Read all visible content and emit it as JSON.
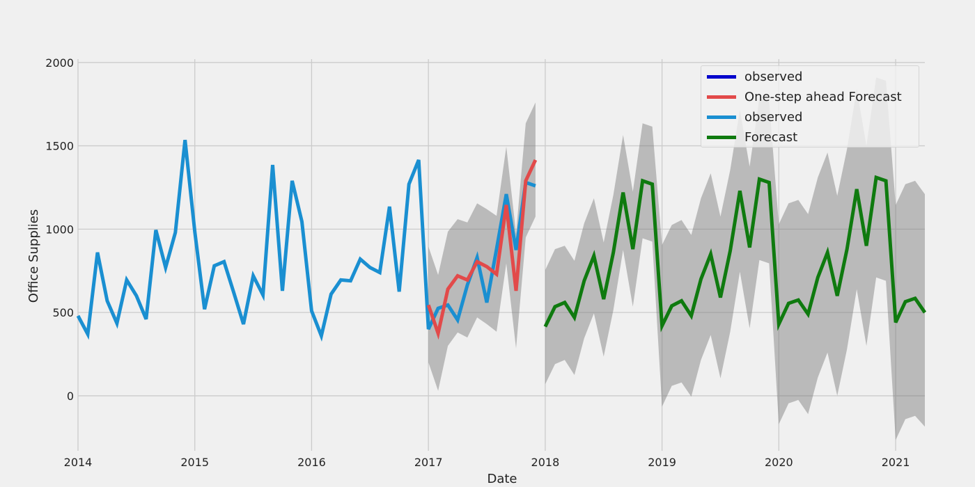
{
  "chart_data": {
    "type": "line",
    "xlabel": "Date",
    "ylabel": "Office Supplies",
    "xlim": [
      2014.0,
      2021.25
    ],
    "ylim": [
      -330,
      2020
    ],
    "x_ticks": [
      {
        "value": 2014,
        "label": "2014"
      },
      {
        "value": 2015,
        "label": "2015"
      },
      {
        "value": 2016,
        "label": "2016"
      },
      {
        "value": 2017,
        "label": "2017"
      },
      {
        "value": 2018,
        "label": "2018"
      },
      {
        "value": 2019,
        "label": "2019"
      },
      {
        "value": 2020,
        "label": "2020"
      },
      {
        "value": 2021,
        "label": "2021"
      }
    ],
    "y_ticks": [
      {
        "value": 0,
        "label": "0"
      },
      {
        "value": 500,
        "label": "500"
      },
      {
        "value": 1000,
        "label": "1000"
      },
      {
        "value": 1500,
        "label": "1500"
      },
      {
        "value": 2000,
        "label": "2000"
      }
    ],
    "grid": true,
    "legend_position": "top-right",
    "legend": [
      {
        "label": "observed",
        "color": "#0000cc"
      },
      {
        "label": "One-step ahead Forecast",
        "color": "#e24a4a"
      },
      {
        "label": "observed",
        "color": "#1a8fd1"
      },
      {
        "label": "Forecast",
        "color": "#0f7a0f"
      }
    ],
    "series": [
      {
        "name": "observed",
        "color": "#1a8fd1",
        "start": "2014-01",
        "values": [
          480,
          370,
          860,
          570,
          435,
          695,
          600,
          460,
          995,
          770,
          980,
          1535,
          985,
          520,
          780,
          805,
          620,
          430,
          720,
          605,
          1385,
          630,
          1290,
          1045,
          510,
          360,
          610,
          695,
          690,
          820,
          770,
          740,
          1135,
          625,
          1270,
          1415,
          400,
          525,
          545,
          455,
          665,
          830,
          560,
          880,
          1210,
          875,
          1280,
          1260
        ]
      },
      {
        "name": "One-step ahead Forecast",
        "color": "#e24a4a",
        "start": "2017-01",
        "values": [
          545,
          375,
          640,
          720,
          695,
          805,
          775,
          730,
          1145,
          630,
          1290,
          1415
        ],
        "ci_lower": [
          200,
          30,
          300,
          380,
          350,
          470,
          430,
          385,
          795,
          285,
          950,
          1075
        ],
        "ci_upper": [
          895,
          725,
          985,
          1060,
          1040,
          1155,
          1120,
          1080,
          1495,
          975,
          1635,
          1760
        ]
      },
      {
        "name": "Forecast",
        "color": "#0f7a0f",
        "start": "2018-01",
        "values": [
          415,
          535,
          560,
          470,
          690,
          840,
          580,
          860,
          1220,
          880,
          1290,
          1270,
          420,
          540,
          570,
          480,
          700,
          850,
          590,
          870,
          1230,
          890,
          1300,
          1280,
          430,
          555,
          575,
          490,
          710,
          860,
          600,
          880,
          1240,
          900,
          1310,
          1290,
          440,
          565,
          585,
          500
        ],
        "ci_lower": [
          70,
          190,
          215,
          125,
          345,
          495,
          235,
          515,
          875,
          535,
          945,
          925,
          -65,
          60,
          80,
          -5,
          215,
          365,
          105,
          385,
          745,
          405,
          815,
          795,
          -170,
          -45,
          -25,
          -110,
          110,
          260,
          0,
          280,
          640,
          300,
          710,
          690,
          -265,
          -140,
          -120,
          -185
        ],
        "ci_upper": [
          755,
          880,
          900,
          810,
          1035,
          1185,
          920,
          1205,
          1565,
          1225,
          1635,
          1615,
          905,
          1025,
          1055,
          965,
          1185,
          1335,
          1075,
          1355,
          1715,
          1375,
          1785,
          1765,
          1030,
          1155,
          1175,
          1090,
          1310,
          1460,
          1200,
          1480,
          1840,
          1500,
          1910,
          1890,
          1145,
          1270,
          1290,
          1210
        ]
      }
    ]
  }
}
